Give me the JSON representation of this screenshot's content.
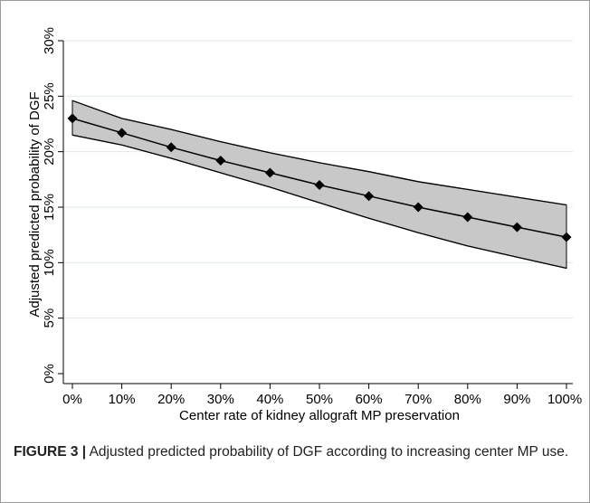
{
  "chart_data": {
    "type": "line",
    "title": "",
    "xlabel": "Center rate of kidney allograft MP preservation",
    "ylabel": "Adjusted predicted probability of DGF",
    "x": [
      0,
      10,
      20,
      30,
      40,
      50,
      60,
      70,
      80,
      90,
      100
    ],
    "x_tick_labels": [
      "0%",
      "10%",
      "20%",
      "30%",
      "40%",
      "50%",
      "60%",
      "70%",
      "80%",
      "90%",
      "100%"
    ],
    "y_ticks": [
      0,
      5,
      10,
      15,
      20,
      25,
      30
    ],
    "y_tick_labels": [
      "0%",
      "5%",
      "10%",
      "15%",
      "20%",
      "25%",
      "30%"
    ],
    "xlim": [
      0,
      100
    ],
    "ylim": [
      0,
      30
    ],
    "grid": true,
    "series": [
      {
        "name": "",
        "values": [
          23.0,
          21.7,
          20.4,
          19.2,
          18.1,
          17.0,
          16.0,
          15.0,
          14.1,
          13.2,
          12.3
        ],
        "ci_lower": [
          21.5,
          20.6,
          19.4,
          18.1,
          16.8,
          15.4,
          14.0,
          12.7,
          11.5,
          10.5,
          9.5
        ],
        "ci_upper": [
          24.6,
          23.0,
          22.0,
          20.9,
          19.9,
          19.0,
          18.2,
          17.3,
          16.6,
          15.9,
          15.2
        ]
      }
    ],
    "colors": {
      "band_fill": "#c8c8c8",
      "line": "#000000",
      "grid": "#e3eaea"
    }
  },
  "caption": {
    "label": "FIGURE 3 |",
    "text": " Adjusted predicted probability of DGF according to increasing center MP use."
  }
}
